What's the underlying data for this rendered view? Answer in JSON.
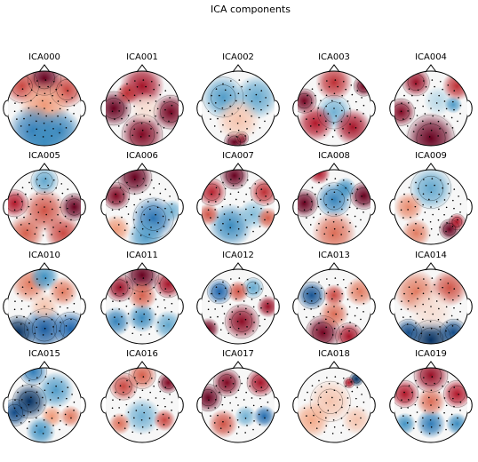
{
  "figure": {
    "title": "ICA components"
  },
  "components": [
    {
      "label": "ICA000",
      "blobs": [
        [
          0.5,
          0.1,
          0.25,
          1.0
        ],
        [
          0.2,
          0.2,
          0.25,
          0.5
        ],
        [
          0.8,
          0.25,
          0.25,
          0.5
        ],
        [
          0.5,
          0.45,
          0.35,
          0.2
        ],
        [
          0.35,
          0.8,
          0.35,
          -0.55
        ],
        [
          0.7,
          0.8,
          0.3,
          -0.5
        ],
        [
          0.5,
          0.95,
          0.3,
          -0.45
        ]
      ]
    },
    {
      "label": "ICA001",
      "blobs": [
        [
          0.12,
          0.5,
          0.25,
          1.0
        ],
        [
          0.88,
          0.55,
          0.25,
          0.95
        ],
        [
          0.5,
          0.85,
          0.3,
          0.9
        ],
        [
          0.5,
          0.2,
          0.3,
          0.75
        ],
        [
          0.55,
          0.5,
          0.22,
          0.05
        ],
        [
          0.3,
          0.3,
          0.15,
          0.6
        ]
      ]
    },
    {
      "label": "ICA002",
      "blobs": [
        [
          0.45,
          0.95,
          0.15,
          1.0
        ],
        [
          0.55,
          0.9,
          0.1,
          0.9
        ],
        [
          0.3,
          0.35,
          0.3,
          -0.35
        ],
        [
          0.75,
          0.35,
          0.3,
          -0.3
        ],
        [
          0.5,
          0.65,
          0.3,
          0.1
        ]
      ]
    },
    {
      "label": "ICA003",
      "blobs": [
        [
          0.1,
          0.4,
          0.18,
          0.95
        ],
        [
          0.9,
          0.2,
          0.15,
          0.95
        ],
        [
          0.5,
          0.55,
          0.25,
          -0.25
        ],
        [
          0.25,
          0.7,
          0.25,
          0.7
        ],
        [
          0.75,
          0.75,
          0.25,
          0.75
        ],
        [
          0.5,
          0.15,
          0.25,
          0.6
        ]
      ]
    },
    {
      "label": "ICA004",
      "blobs": [
        [
          0.5,
          0.9,
          0.35,
          1.0
        ],
        [
          0.1,
          0.55,
          0.2,
          0.9
        ],
        [
          0.3,
          0.15,
          0.2,
          0.8
        ],
        [
          0.6,
          0.4,
          0.2,
          -0.1
        ],
        [
          0.8,
          0.45,
          0.12,
          -0.35
        ],
        [
          0.85,
          0.2,
          0.2,
          0.6
        ]
      ]
    },
    {
      "label": "ICA005",
      "blobs": [
        [
          0.9,
          0.5,
          0.2,
          1.0
        ],
        [
          0.1,
          0.45,
          0.2,
          0.7
        ],
        [
          0.5,
          0.15,
          0.2,
          -0.3
        ],
        [
          0.5,
          0.55,
          0.3,
          0.45
        ],
        [
          0.25,
          0.85,
          0.25,
          0.4
        ],
        [
          0.75,
          0.85,
          0.25,
          0.5
        ]
      ]
    },
    {
      "label": "ICA006",
      "blobs": [
        [
          0.4,
          0.1,
          0.25,
          1.0
        ],
        [
          0.15,
          0.35,
          0.2,
          0.9
        ],
        [
          0.65,
          0.65,
          0.3,
          -0.6
        ],
        [
          0.55,
          0.9,
          0.25,
          -0.35
        ],
        [
          0.9,
          0.55,
          0.15,
          -0.25
        ],
        [
          0.15,
          0.8,
          0.2,
          0.2
        ]
      ]
    },
    {
      "label": "ICA007",
      "blobs": [
        [
          0.45,
          0.08,
          0.2,
          1.0
        ],
        [
          0.15,
          0.3,
          0.2,
          0.65
        ],
        [
          0.85,
          0.3,
          0.2,
          0.6
        ],
        [
          0.4,
          0.75,
          0.3,
          -0.45
        ],
        [
          0.7,
          0.6,
          0.2,
          -0.2
        ],
        [
          0.1,
          0.6,
          0.15,
          0.45
        ],
        [
          0.9,
          0.65,
          0.15,
          0.4
        ]
      ]
    },
    {
      "label": "ICA008",
      "blobs": [
        [
          0.1,
          0.45,
          0.2,
          1.0
        ],
        [
          0.9,
          0.35,
          0.2,
          1.0
        ],
        [
          0.5,
          0.4,
          0.25,
          -0.5
        ],
        [
          0.3,
          0.05,
          0.15,
          0.7
        ],
        [
          0.5,
          0.85,
          0.3,
          0.35
        ],
        [
          0.65,
          0.25,
          0.15,
          -0.4
        ]
      ]
    },
    {
      "label": "ICA009",
      "blobs": [
        [
          0.75,
          0.8,
          0.15,
          1.0
        ],
        [
          0.85,
          0.7,
          0.12,
          0.7
        ],
        [
          0.5,
          0.25,
          0.3,
          -0.3
        ],
        [
          0.2,
          0.5,
          0.2,
          0.25
        ],
        [
          0.3,
          0.85,
          0.2,
          0.3
        ]
      ]
    },
    {
      "label": "ICA010",
      "blobs": [
        [
          0.15,
          0.85,
          0.25,
          -1.0
        ],
        [
          0.5,
          0.8,
          0.3,
          -0.75
        ],
        [
          0.85,
          0.8,
          0.25,
          -0.7
        ],
        [
          0.3,
          0.2,
          0.25,
          0.3
        ],
        [
          0.5,
          0.1,
          0.2,
          -0.4
        ],
        [
          0.75,
          0.3,
          0.2,
          0.3
        ],
        [
          0.5,
          0.5,
          0.2,
          0.1
        ]
      ]
    },
    {
      "label": "ICA011",
      "blobs": [
        [
          0.5,
          0.08,
          0.25,
          1.0
        ],
        [
          0.2,
          0.25,
          0.2,
          0.8
        ],
        [
          0.85,
          0.2,
          0.2,
          0.75
        ],
        [
          0.15,
          0.7,
          0.2,
          -0.5
        ],
        [
          0.5,
          0.65,
          0.2,
          -0.45
        ],
        [
          0.85,
          0.75,
          0.2,
          -0.3
        ],
        [
          0.5,
          0.35,
          0.2,
          0.4
        ]
      ]
    },
    {
      "label": "ICA012",
      "blobs": [
        [
          0.25,
          0.3,
          0.18,
          -0.7
        ],
        [
          0.7,
          0.25,
          0.15,
          -0.3
        ],
        [
          0.55,
          0.7,
          0.25,
          0.85
        ],
        [
          0.1,
          0.8,
          0.15,
          0.95
        ],
        [
          0.9,
          0.5,
          0.15,
          0.8
        ],
        [
          0.5,
          0.3,
          0.15,
          0.45
        ]
      ]
    },
    {
      "label": "ICA013",
      "blobs": [
        [
          0.2,
          0.35,
          0.2,
          -0.8
        ],
        [
          0.35,
          0.85,
          0.25,
          0.95
        ],
        [
          0.7,
          0.9,
          0.2,
          0.75
        ],
        [
          0.85,
          0.3,
          0.2,
          0.3
        ],
        [
          0.5,
          0.35,
          0.15,
          0.5
        ],
        [
          0.5,
          0.6,
          0.2,
          0.35
        ]
      ]
    },
    {
      "label": "ICA014",
      "blobs": [
        [
          0.5,
          0.95,
          0.3,
          -1.0
        ],
        [
          0.2,
          0.85,
          0.2,
          -0.85
        ],
        [
          0.8,
          0.85,
          0.2,
          -0.85
        ],
        [
          0.3,
          0.3,
          0.3,
          0.3
        ],
        [
          0.75,
          0.25,
          0.25,
          0.45
        ],
        [
          0.5,
          0.55,
          0.3,
          0.05
        ]
      ]
    },
    {
      "label": "ICA015",
      "blobs": [
        [
          0.3,
          0.45,
          0.25,
          -1.0
        ],
        [
          0.1,
          0.6,
          0.2,
          -0.85
        ],
        [
          0.35,
          0.05,
          0.2,
          -0.55
        ],
        [
          0.65,
          0.3,
          0.25,
          -0.35
        ],
        [
          0.6,
          0.65,
          0.15,
          0.2
        ],
        [
          0.85,
          0.65,
          0.15,
          0.3
        ],
        [
          0.45,
          0.85,
          0.2,
          -0.4
        ]
      ]
    },
    {
      "label": "ICA016",
      "blobs": [
        [
          0.85,
          0.2,
          0.15,
          0.9
        ],
        [
          0.25,
          0.25,
          0.2,
          0.5
        ],
        [
          0.5,
          0.1,
          0.2,
          0.4
        ],
        [
          0.5,
          0.65,
          0.25,
          -0.25
        ],
        [
          0.8,
          0.7,
          0.15,
          0.5
        ],
        [
          0.2,
          0.75,
          0.15,
          0.35
        ]
      ]
    },
    {
      "label": "ICA017",
      "blobs": [
        [
          0.1,
          0.4,
          0.2,
          1.0
        ],
        [
          0.35,
          0.2,
          0.2,
          0.9
        ],
        [
          0.8,
          0.2,
          0.2,
          0.75
        ],
        [
          0.85,
          0.65,
          0.15,
          -0.65
        ],
        [
          0.6,
          0.65,
          0.15,
          -0.25
        ],
        [
          0.3,
          0.75,
          0.2,
          0.45
        ]
      ]
    },
    {
      "label": "ICA018",
      "blobs": [
        [
          0.8,
          0.15,
          0.1,
          -1.0
        ],
        [
          0.7,
          0.2,
          0.08,
          0.7
        ],
        [
          0.45,
          0.45,
          0.3,
          0.1
        ],
        [
          0.2,
          0.7,
          0.25,
          0.15
        ],
        [
          0.8,
          0.7,
          0.2,
          0.1
        ]
      ]
    },
    {
      "label": "ICA019",
      "blobs": [
        [
          0.5,
          0.1,
          0.25,
          0.8
        ],
        [
          0.15,
          0.35,
          0.2,
          0.7
        ],
        [
          0.85,
          0.35,
          0.2,
          0.7
        ],
        [
          0.5,
          0.75,
          0.2,
          -0.55
        ],
        [
          0.15,
          0.75,
          0.15,
          -0.4
        ],
        [
          0.85,
          0.75,
          0.15,
          -0.45
        ],
        [
          0.5,
          0.45,
          0.2,
          0.35
        ]
      ]
    }
  ]
}
